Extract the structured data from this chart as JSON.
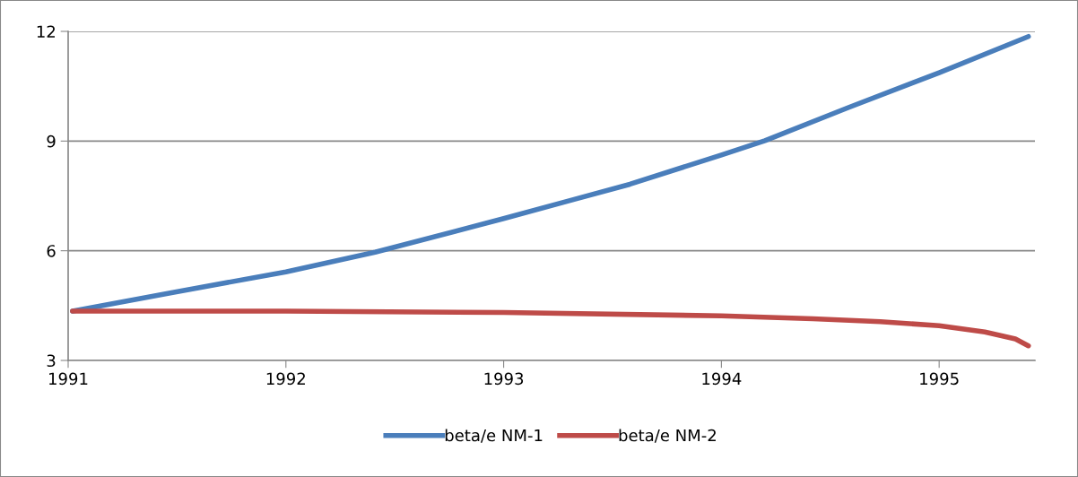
{
  "chart_data": {
    "type": "line",
    "series": [
      {
        "name": "beta/e NM-1",
        "color": "#4a7ebb",
        "x": [
          1991.02,
          1991.48,
          1992.0,
          1992.41,
          1993.0,
          1993.32,
          1993.58,
          1994.0,
          1994.2,
          1994.58,
          1995.0,
          1995.41
        ],
        "values": [
          4.35,
          4.86,
          5.42,
          5.96,
          6.88,
          7.4,
          7.82,
          8.62,
          9.01,
          9.91,
          10.87,
          11.86
        ]
      },
      {
        "name": "beta/e NM-2",
        "color": "#be4b48",
        "x": [
          1991.02,
          1992.0,
          1993.0,
          1994.0,
          1994.42,
          1994.73,
          1995.0,
          1995.21,
          1995.35,
          1995.41
        ],
        "values": [
          4.35,
          4.35,
          4.31,
          4.22,
          4.14,
          4.06,
          3.95,
          3.78,
          3.59,
          3.4
        ]
      }
    ],
    "xlim": [
      1991,
      1995.44
    ],
    "xticks": [
      1991,
      1992,
      1993,
      1994,
      1995
    ],
    "ylim": [
      3,
      12
    ],
    "yticks": [
      3,
      6,
      9,
      12
    ],
    "grid": "y",
    "legend": "bottom",
    "marker": "none",
    "line_style": "solid"
  }
}
